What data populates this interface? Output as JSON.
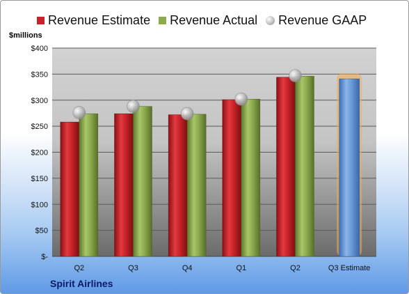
{
  "chart_data": {
    "type": "bar",
    "ylabel": "$millions",
    "ylim": [
      0,
      400
    ],
    "y_ticks": [
      0,
      50,
      100,
      150,
      200,
      250,
      300,
      350,
      400
    ],
    "y_tick_labels": [
      "$-",
      "$50",
      "$100",
      "$150",
      "$200",
      "$250",
      "$300",
      "$350",
      "$400"
    ],
    "categories": [
      "Q2",
      "Q3",
      "Q4",
      "Q1",
      "Q2",
      "Q3 Estimate"
    ],
    "series": [
      {
        "name": "Revenue Estimate",
        "kind": "bar",
        "color": "#c8232a",
        "values": [
          258,
          274,
          272,
          301,
          344,
          null
        ]
      },
      {
        "name": "Revenue Actual",
        "kind": "bar",
        "color": "#8dab4e",
        "values": [
          274,
          288,
          273,
          302,
          346,
          null
        ]
      },
      {
        "name": "Revenue GAAP",
        "kind": "marker",
        "color": "#b9b9b9",
        "values": [
          276,
          288,
          274,
          302,
          347,
          null
        ]
      },
      {
        "name": "Q3 Estimate",
        "kind": "bar",
        "color": "#5b8fd1",
        "highlight": "#f5a94a",
        "values": [
          null,
          null,
          null,
          null,
          null,
          341
        ]
      }
    ],
    "legend_position": "top",
    "grid": true
  },
  "footer": {
    "company": "Spirit Airlines"
  }
}
